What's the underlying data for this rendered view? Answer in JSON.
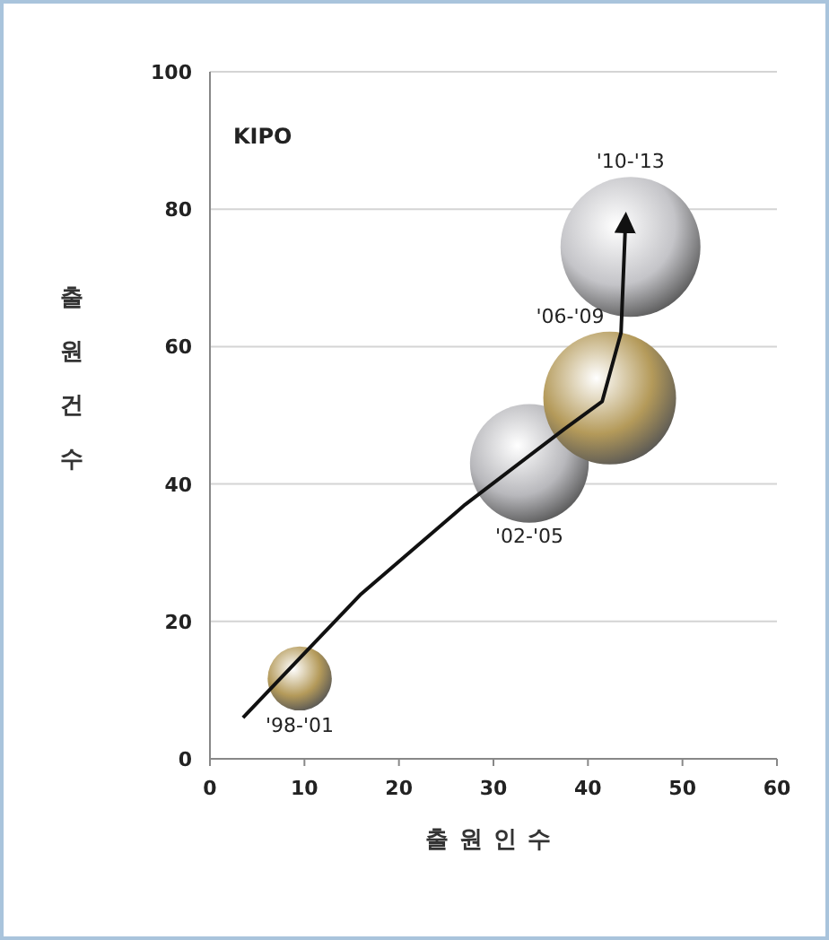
{
  "chart_data": {
    "type": "bubble",
    "title": "KIPO",
    "xlabel": "출원인수",
    "ylabel": "출원건수",
    "x": [
      9.5,
      33.8,
      42.3,
      44.5
    ],
    "series": [
      {
        "values": [
          11.7,
          43,
          52.5,
          74.5
        ],
        "sizes": [
          0.21,
          0.72,
          0.9,
          1
        ],
        "colors": [
          "#b49a5a",
          "#b8b8bc",
          "#b49a5a",
          "#c4c4c8"
        ]
      },
      {
        "type": "line",
        "color": "#111111",
        "x": [
          3.5,
          16,
          27,
          37.5,
          41.5,
          43.5,
          44
        ],
        "values": [
          6,
          24,
          37,
          48,
          52,
          62,
          79
        ]
      }
    ],
    "annotations": [
      "'98-'01",
      "'02-'05",
      "'06-'09",
      "'10-'13"
    ],
    "xlim": [
      0,
      60
    ],
    "xticks": [
      0,
      10,
      20,
      30,
      40,
      50,
      60
    ],
    "ylim": [
      0,
      100
    ],
    "yticks": [
      0,
      20,
      40,
      60,
      80,
      100
    ],
    "grid": "y"
  }
}
